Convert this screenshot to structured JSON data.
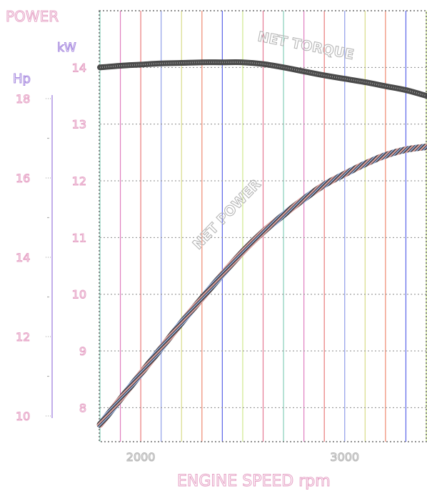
{
  "chart_data": {
    "type": "line",
    "labels": {
      "power": "POWER",
      "kw": "kW",
      "hp": "Hp",
      "xlabel": "ENGINE SPEED rpm"
    },
    "kw_axis": {
      "ticks": [
        "8",
        "9",
        "10",
        "11",
        "12",
        "13",
        "14"
      ],
      "range": [
        7.4,
        15.0
      ]
    },
    "hp_axis": {
      "ticks": [
        "10",
        "12",
        "14",
        "16",
        "18"
      ],
      "range": [
        10.0,
        18.0
      ]
    },
    "x_axis": {
      "ticks": [
        "2000",
        "3000"
      ],
      "range": [
        1800,
        3400
      ]
    },
    "series": [
      {
        "name": "NET POWER",
        "x": [
          1800,
          1900,
          2000,
          2100,
          2200,
          2300,
          2400,
          2500,
          2600,
          2700,
          2800,
          2900,
          3000,
          3100,
          3200,
          3300,
          3400
        ],
        "y": [
          7.7,
          8.15,
          8.6,
          9.05,
          9.5,
          9.93,
          10.35,
          10.75,
          11.1,
          11.4,
          11.68,
          11.93,
          12.12,
          12.3,
          12.45,
          12.55,
          12.6
        ]
      },
      {
        "name": "NET TORQUE",
        "x": [
          1800,
          1900,
          2000,
          2100,
          2200,
          2300,
          2400,
          2500,
          2600,
          2700,
          2800,
          2900,
          3000,
          3100,
          3200,
          3300,
          3400
        ],
        "y": [
          14.0,
          14.03,
          14.05,
          14.07,
          14.08,
          14.09,
          14.09,
          14.09,
          14.06,
          14.0,
          13.93,
          13.86,
          13.8,
          13.74,
          13.67,
          13.6,
          13.5
        ]
      }
    ],
    "annotations": [
      "NET POWER",
      "NET TORQUE"
    ],
    "grid": true,
    "colors": {
      "line": "#b2b2b2",
      "vgrid": [
        "#86cfb9",
        "#e07ec0",
        "#ea7a7a",
        "#8f9de8",
        "#d8dc8a",
        "#ef8a70",
        "#5b64e8",
        "#cfe88d",
        "#e67894"
      ],
      "hp_axis": "#a98ce0",
      "text": "#e6a3c6"
    }
  }
}
